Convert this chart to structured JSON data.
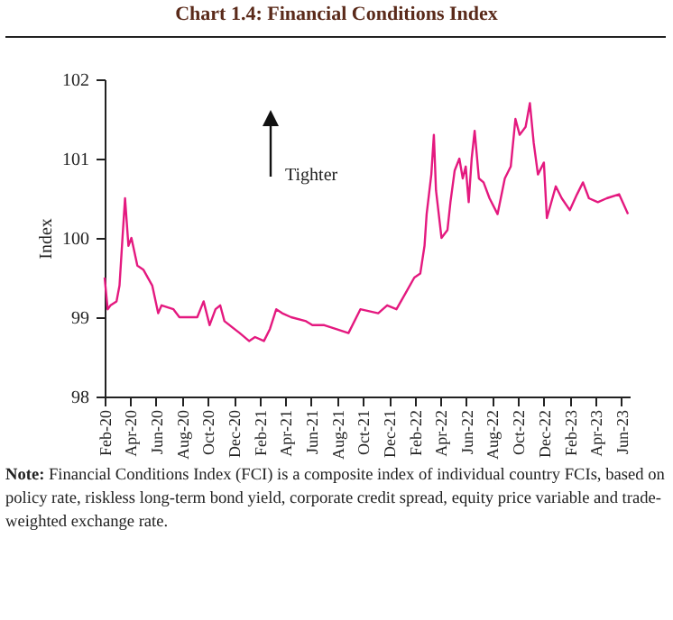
{
  "chart_data": {
    "type": "line",
    "title": "Chart 1.4: Financial Conditions Index",
    "ylabel": "Index",
    "annotations": [
      "Tighter",
      "Note: Financial Conditions Index (FCI) is a composite index of individual country FCIs, based on policy rate, riskless long-term bond yield, corporate credit spread, equity price variable and trade-weighted exchange rate."
    ],
    "x": [
      "2020-02-01",
      "2020-02-08",
      "2020-02-15",
      "2020-02-29",
      "2020-03-07",
      "2020-03-14",
      "2020-03-20",
      "2020-03-28",
      "2020-04-04",
      "2020-04-18",
      "2020-05-02",
      "2020-05-23",
      "2020-06-06",
      "2020-06-14",
      "2020-07-12",
      "2020-07-26",
      "2020-09-06",
      "2020-09-21",
      "2020-10-05",
      "2020-10-19",
      "2020-10-30",
      "2020-11-09",
      "2020-12-15",
      "2021-01-06",
      "2021-01-20",
      "2021-02-10",
      "2021-02-24",
      "2021-03-11",
      "2021-03-25",
      "2021-04-15",
      "2021-05-20",
      "2021-06-04",
      "2021-07-02",
      "2021-07-30",
      "2021-08-28",
      "2021-09-25",
      "2021-11-06",
      "2021-11-27",
      "2021-12-19",
      "2022-01-09",
      "2022-01-30",
      "2022-02-13",
      "2022-02-23",
      "2022-02-28",
      "2022-03-11",
      "2022-03-17",
      "2022-03-22",
      "2022-04-04",
      "2022-04-18",
      "2022-04-25",
      "2022-05-05",
      "2022-05-16",
      "2022-05-24",
      "2022-05-31",
      "2022-06-07",
      "2022-06-14",
      "2022-06-21",
      "2022-07-01",
      "2022-07-12",
      "2022-07-26",
      "2022-08-14",
      "2022-08-31",
      "2022-09-14",
      "2022-09-25",
      "2022-10-05",
      "2022-10-19",
      "2022-10-29",
      "2022-11-07",
      "2022-11-17",
      "2022-12-01",
      "2022-12-08",
      "2022-12-29",
      "2023-01-12",
      "2023-01-31",
      "2023-02-17",
      "2023-03-03",
      "2023-03-17",
      "2023-04-07",
      "2023-04-28",
      "2023-05-27",
      "2023-06-17"
    ],
    "series": [
      {
        "color": "#e4197f",
        "values": [
          99.5,
          99.1,
          99.15,
          99.2,
          99.4,
          100.0,
          100.5,
          99.9,
          100.0,
          99.65,
          99.6,
          99.4,
          99.05,
          99.15,
          99.1,
          99.0,
          99.0,
          99.2,
          98.9,
          99.1,
          99.15,
          98.95,
          98.8,
          98.7,
          98.75,
          98.7,
          98.85,
          99.1,
          99.05,
          99.0,
          98.95,
          98.9,
          98.9,
          98.85,
          98.8,
          99.1,
          99.05,
          99.15,
          99.1,
          99.3,
          99.5,
          99.55,
          99.9,
          100.3,
          100.8,
          101.3,
          100.6,
          100.0,
          100.1,
          100.45,
          100.85,
          101.0,
          100.75,
          100.9,
          100.45,
          101.0,
          101.35,
          100.75,
          100.7,
          100.5,
          100.3,
          100.75,
          100.9,
          101.5,
          101.3,
          101.4,
          101.7,
          101.2,
          100.8,
          100.95,
          100.25,
          100.65,
          100.5,
          100.35,
          100.55,
          100.7,
          100.5,
          100.45,
          100.5,
          100.55,
          100.3
        ]
      }
    ],
    "xlim": [
      "2020-02-01",
      "2023-06-21"
    ],
    "xticks": [
      {
        "value": "2020-02-01",
        "label": "Feb-20"
      },
      {
        "value": "2020-04-01",
        "label": "Apr-20"
      },
      {
        "value": "2020-06-01",
        "label": "Jun-20"
      },
      {
        "value": "2020-08-01",
        "label": "Aug-20"
      },
      {
        "value": "2020-10-01",
        "label": "Oct-20"
      },
      {
        "value": "2020-12-01",
        "label": "Dec-20"
      },
      {
        "value": "2021-02-01",
        "label": "Feb-21"
      },
      {
        "value": "2021-04-01",
        "label": "Apr-21"
      },
      {
        "value": "2021-06-01",
        "label": "Jun-21"
      },
      {
        "value": "2021-08-01",
        "label": "Aug-21"
      },
      {
        "value": "2021-10-01",
        "label": "Oct-21"
      },
      {
        "value": "2021-12-01",
        "label": "Dec-21"
      },
      {
        "value": "2022-02-01",
        "label": "Feb-22"
      },
      {
        "value": "2022-04-01",
        "label": "Apr-22"
      },
      {
        "value": "2022-06-01",
        "label": "Jun-22"
      },
      {
        "value": "2022-08-01",
        "label": "Aug-22"
      },
      {
        "value": "2022-10-01",
        "label": "Oct-22"
      },
      {
        "value": "2022-12-01",
        "label": "Dec-22"
      },
      {
        "value": "2023-02-01",
        "label": "Feb-23"
      },
      {
        "value": "2023-04-01",
        "label": "Apr-23"
      },
      {
        "value": "2023-06-01",
        "label": "Jun-23"
      }
    ],
    "ylim": [
      98,
      102
    ],
    "yticks": [
      98,
      99,
      100,
      101,
      102
    ],
    "grid": false,
    "line_style": "solid"
  }
}
